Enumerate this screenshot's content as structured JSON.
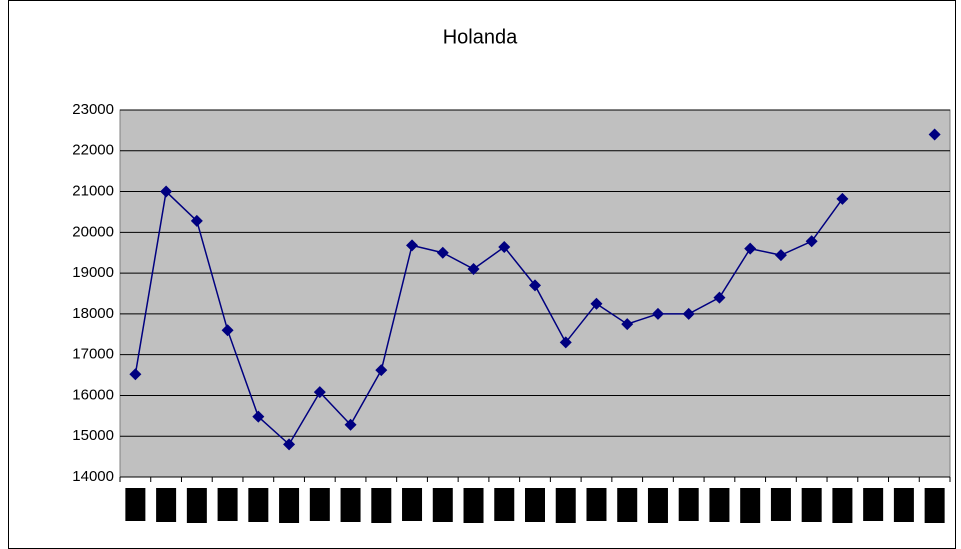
{
  "chart_data": {
    "type": "line",
    "title": "Holanda",
    "categories": [
      null,
      null,
      null,
      null,
      null,
      null,
      null,
      null,
      null,
      null,
      null,
      null,
      null,
      null,
      null,
      null,
      null,
      null,
      null,
      null,
      null,
      null,
      null,
      null,
      null,
      null,
      null
    ],
    "series": [
      {
        "name": "Holanda",
        "color": "#000080",
        "values": [
          16520,
          21000,
          20280,
          17600,
          15480,
          14800,
          16080,
          15280,
          16620,
          19680,
          19500,
          19100,
          19640,
          18700,
          17300,
          18250,
          17750,
          18000,
          18000,
          18400,
          19600,
          19440,
          19780,
          20820,
          null,
          null,
          22400
        ]
      }
    ],
    "ylim": [
      14000,
      23000
    ],
    "yticks": [
      14000,
      15000,
      16000,
      17000,
      18000,
      19000,
      20000,
      21000,
      22000,
      23000
    ],
    "grid": true
  }
}
